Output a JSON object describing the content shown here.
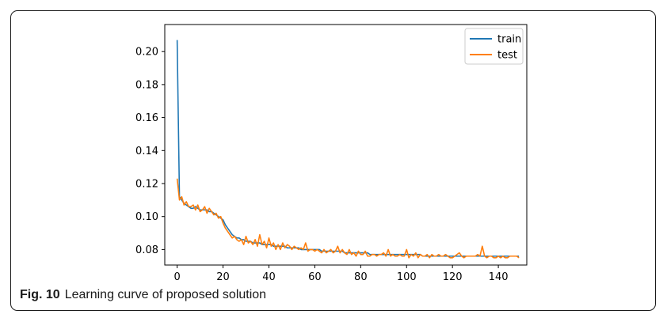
{
  "caption": {
    "label": "Fig. 10",
    "text": "Learning curve of proposed solution"
  },
  "colors": {
    "train": "#1f77b4",
    "test": "#ff7f0e",
    "axis": "#000000",
    "frame": "#1a1a1a"
  },
  "chart_data": {
    "type": "line",
    "title": "",
    "xlabel": "",
    "ylabel": "",
    "xlim": [
      -5.4,
      152.4
    ],
    "ylim": [
      0.0706,
      0.2164
    ],
    "x_ticks": [
      0,
      20,
      40,
      60,
      80,
      100,
      120,
      140
    ],
    "x_tick_labels": [
      "0",
      "20",
      "40",
      "60",
      "80",
      "100",
      "120",
      "140"
    ],
    "y_ticks": [
      0.08,
      0.1,
      0.12,
      0.14,
      0.16,
      0.18,
      0.2
    ],
    "y_tick_labels": [
      "0.08",
      "0.10",
      "0.12",
      "0.14",
      "0.16",
      "0.18",
      "0.20"
    ],
    "grid": false,
    "legend_position": "top-right",
    "series": [
      {
        "name": "train",
        "color": "#1f77b4",
        "x": [
          0,
          1,
          2,
          3,
          4,
          5,
          6,
          7,
          8,
          9,
          10,
          11,
          12,
          13,
          14,
          15,
          16,
          17,
          18,
          19,
          20,
          21,
          22,
          23,
          24,
          25,
          26,
          27,
          28,
          29,
          30,
          31,
          32,
          33,
          34,
          35,
          36,
          37,
          38,
          39,
          40,
          41,
          42,
          43,
          44,
          45,
          46,
          47,
          48,
          49,
          50,
          51,
          52,
          53,
          54,
          55,
          56,
          57,
          58,
          59,
          60,
          61,
          62,
          63,
          64,
          65,
          66,
          67,
          68,
          69,
          70,
          71,
          72,
          73,
          74,
          75,
          76,
          77,
          78,
          79,
          80,
          81,
          82,
          83,
          84,
          85,
          86,
          87,
          88,
          89,
          90,
          91,
          92,
          93,
          94,
          95,
          96,
          97,
          98,
          99,
          100,
          101,
          102,
          103,
          104,
          105,
          106,
          107,
          108,
          109,
          110,
          111,
          112,
          113,
          114,
          115,
          116,
          117,
          118,
          119,
          120,
          121,
          122,
          123,
          124,
          125,
          126,
          127,
          128,
          129,
          130,
          131,
          132,
          133,
          134,
          135,
          136,
          137,
          138,
          139,
          140,
          141,
          142,
          143,
          144,
          145,
          146,
          147,
          148,
          149
        ],
        "values": [
          0.207,
          0.112,
          0.11,
          0.108,
          0.107,
          0.106,
          0.105,
          0.105,
          0.106,
          0.105,
          0.104,
          0.104,
          0.104,
          0.104,
          0.103,
          0.103,
          0.102,
          0.101,
          0.1,
          0.099,
          0.098,
          0.095,
          0.093,
          0.091,
          0.089,
          0.088,
          0.087,
          0.087,
          0.086,
          0.086,
          0.085,
          0.085,
          0.085,
          0.084,
          0.084,
          0.084,
          0.084,
          0.083,
          0.083,
          0.083,
          0.083,
          0.083,
          0.082,
          0.082,
          0.082,
          0.082,
          0.082,
          0.082,
          0.081,
          0.081,
          0.081,
          0.081,
          0.081,
          0.081,
          0.08,
          0.08,
          0.08,
          0.08,
          0.08,
          0.08,
          0.08,
          0.08,
          0.08,
          0.079,
          0.079,
          0.079,
          0.079,
          0.079,
          0.079,
          0.079,
          0.079,
          0.079,
          0.079,
          0.078,
          0.078,
          0.078,
          0.078,
          0.078,
          0.078,
          0.078,
          0.078,
          0.078,
          0.078,
          0.078,
          0.077,
          0.077,
          0.077,
          0.077,
          0.077,
          0.077,
          0.077,
          0.077,
          0.077,
          0.077,
          0.077,
          0.077,
          0.077,
          0.077,
          0.077,
          0.077,
          0.077,
          0.077,
          0.077,
          0.077,
          0.077,
          0.077,
          0.077,
          0.076,
          0.076,
          0.076,
          0.076,
          0.076,
          0.076,
          0.076,
          0.076,
          0.076,
          0.076,
          0.076,
          0.076,
          0.076,
          0.076,
          0.076,
          0.076,
          0.076,
          0.076,
          0.076,
          0.076,
          0.076,
          0.076,
          0.076,
          0.076,
          0.076,
          0.076,
          0.076,
          0.076,
          0.076,
          0.076,
          0.076,
          0.076,
          0.076,
          0.076,
          0.076,
          0.076,
          0.076,
          0.076,
          0.076,
          0.076,
          0.076,
          0.076,
          0.076
        ]
      },
      {
        "name": "test",
        "color": "#ff7f0e",
        "x": [
          0,
          1,
          2,
          3,
          4,
          5,
          6,
          7,
          8,
          9,
          10,
          11,
          12,
          13,
          14,
          15,
          16,
          17,
          18,
          19,
          20,
          21,
          22,
          23,
          24,
          25,
          26,
          27,
          28,
          29,
          30,
          31,
          32,
          33,
          34,
          35,
          36,
          37,
          38,
          39,
          40,
          41,
          42,
          43,
          44,
          45,
          46,
          47,
          48,
          49,
          50,
          51,
          52,
          53,
          54,
          55,
          56,
          57,
          58,
          59,
          60,
          61,
          62,
          63,
          64,
          65,
          66,
          67,
          68,
          69,
          70,
          71,
          72,
          73,
          74,
          75,
          76,
          77,
          78,
          79,
          80,
          81,
          82,
          83,
          84,
          85,
          86,
          87,
          88,
          89,
          90,
          91,
          92,
          93,
          94,
          95,
          96,
          97,
          98,
          99,
          100,
          101,
          102,
          103,
          104,
          105,
          106,
          107,
          108,
          109,
          110,
          111,
          112,
          113,
          114,
          115,
          116,
          117,
          118,
          119,
          120,
          121,
          122,
          123,
          124,
          125,
          126,
          127,
          128,
          129,
          130,
          131,
          132,
          133,
          134,
          135,
          136,
          137,
          138,
          139,
          140,
          141,
          142,
          143,
          144,
          145,
          146,
          147,
          148,
          149
        ],
        "values": [
          0.123,
          0.11,
          0.112,
          0.107,
          0.109,
          0.106,
          0.106,
          0.107,
          0.104,
          0.107,
          0.103,
          0.104,
          0.106,
          0.102,
          0.105,
          0.103,
          0.101,
          0.102,
          0.099,
          0.1,
          0.096,
          0.093,
          0.091,
          0.089,
          0.087,
          0.088,
          0.086,
          0.085,
          0.086,
          0.083,
          0.088,
          0.084,
          0.085,
          0.083,
          0.086,
          0.082,
          0.089,
          0.083,
          0.085,
          0.081,
          0.087,
          0.082,
          0.084,
          0.08,
          0.083,
          0.08,
          0.084,
          0.081,
          0.083,
          0.082,
          0.08,
          0.082,
          0.081,
          0.08,
          0.081,
          0.08,
          0.084,
          0.079,
          0.08,
          0.08,
          0.079,
          0.08,
          0.079,
          0.078,
          0.08,
          0.078,
          0.079,
          0.08,
          0.078,
          0.079,
          0.082,
          0.078,
          0.08,
          0.078,
          0.077,
          0.08,
          0.077,
          0.078,
          0.076,
          0.079,
          0.077,
          0.077,
          0.079,
          0.076,
          0.076,
          0.077,
          0.077,
          0.076,
          0.077,
          0.077,
          0.078,
          0.076,
          0.08,
          0.076,
          0.077,
          0.076,
          0.076,
          0.077,
          0.076,
          0.076,
          0.08,
          0.075,
          0.077,
          0.076,
          0.078,
          0.075,
          0.077,
          0.076,
          0.076,
          0.077,
          0.075,
          0.077,
          0.076,
          0.076,
          0.077,
          0.076,
          0.076,
          0.077,
          0.076,
          0.075,
          0.075,
          0.076,
          0.077,
          0.078,
          0.076,
          0.075,
          0.076,
          0.076,
          0.076,
          0.076,
          0.076,
          0.077,
          0.076,
          0.082,
          0.076,
          0.075,
          0.076,
          0.076,
          0.075,
          0.075,
          0.076,
          0.075,
          0.076,
          0.075,
          0.075,
          0.076,
          0.076,
          0.076,
          0.076,
          0.075
        ]
      }
    ]
  }
}
